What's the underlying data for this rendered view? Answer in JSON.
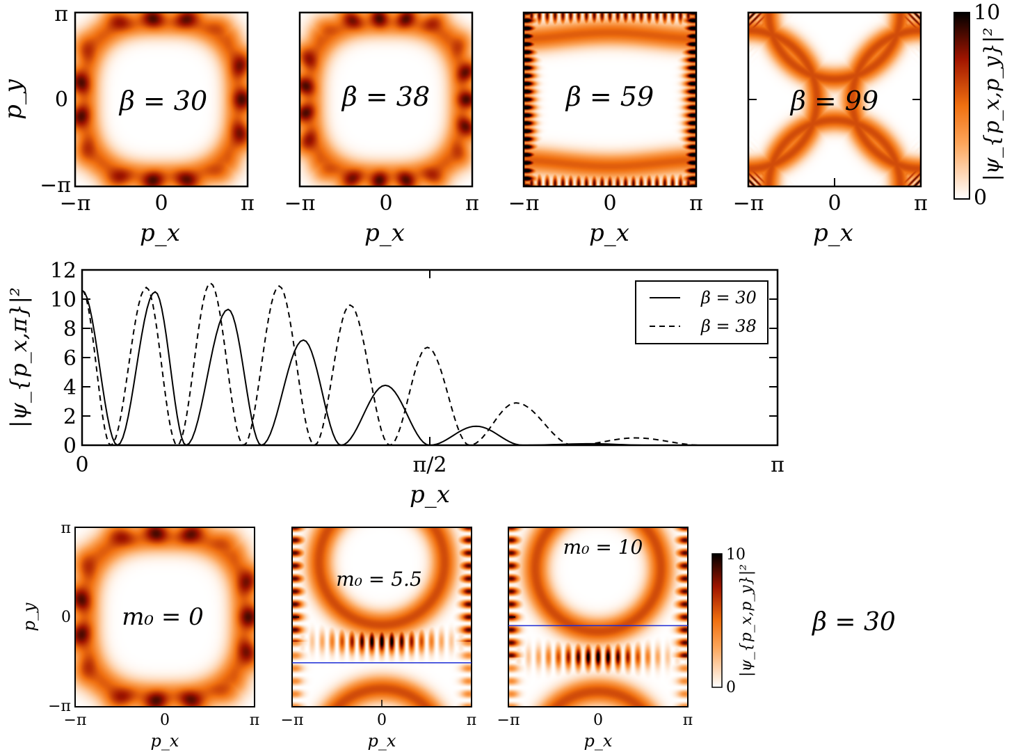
{
  "chart_data": [
    {
      "type": "heatmap",
      "panel": "top-1",
      "annotation": "β = 30",
      "xlabel": "p_x",
      "ylabel": "p_y",
      "xlim": [
        "-π",
        "π"
      ],
      "ylim": [
        "-π",
        "π"
      ],
      "x_ticks": [
        "−π",
        "0",
        "π"
      ],
      "y_ticks": [
        "π",
        "0",
        "−π"
      ],
      "pattern": "ring",
      "beta": 30,
      "fringe_count": 15
    },
    {
      "type": "heatmap",
      "panel": "top-2",
      "annotation": "β = 38",
      "xlabel": "p_x",
      "xlim": [
        "-π",
        "π"
      ],
      "x_ticks": [
        "−π",
        "0",
        "π"
      ],
      "pattern": "ring",
      "beta": 38,
      "fringe_count": 19
    },
    {
      "type": "heatmap",
      "panel": "top-3",
      "annotation": "β = 59",
      "xlabel": "p_x",
      "xlim": [
        "-π",
        "π"
      ],
      "x_ticks": [
        "−π",
        "0",
        "π"
      ],
      "pattern": "square",
      "beta": 59,
      "fringe_count": 22
    },
    {
      "type": "heatmap",
      "panel": "top-4",
      "annotation": "β = 99",
      "xlabel": "p_x",
      "xlim": [
        "-π",
        "π"
      ],
      "x_ticks": [
        "−π",
        "0",
        "π"
      ],
      "pattern": "star",
      "beta": 99,
      "fringe_count": 26
    },
    {
      "type": "colorbar",
      "panel": "top-colorbar",
      "label": "|ψ_{p_x,p_y}|²",
      "range": [
        0,
        10
      ],
      "tick_labels": [
        "10",
        "0"
      ]
    },
    {
      "type": "line",
      "panel": "middle",
      "xlabel": "p_x",
      "ylabel": "|ψ_{p_x,π}|²",
      "xlim": [
        0,
        3.14159
      ],
      "ylim": [
        0,
        12
      ],
      "x_ticks": [
        {
          "value": 0,
          "label": "0"
        },
        {
          "value": 1.5708,
          "label": "π/2"
        },
        {
          "value": 3.14159,
          "label": "π"
        }
      ],
      "y_ticks": [
        "0",
        "2",
        "4",
        "6",
        "8",
        "10",
        "12"
      ],
      "legend": "top-right",
      "series": [
        {
          "name": "β = 30",
          "style": "solid",
          "points": [
            [
              0,
              10.6
            ],
            [
              0.16,
              0
            ],
            [
              0.33,
              10.5
            ],
            [
              0.47,
              0
            ],
            [
              0.66,
              9.3
            ],
            [
              0.81,
              0
            ],
            [
              1.0,
              7.2
            ],
            [
              1.17,
              0
            ],
            [
              1.37,
              4.1
            ],
            [
              1.57,
              0
            ],
            [
              1.78,
              1.3
            ],
            [
              1.99,
              0
            ],
            [
              2.3,
              0.1
            ],
            [
              2.55,
              0
            ],
            [
              3.14,
              0
            ]
          ]
        },
        {
          "name": "β = 38",
          "style": "dashed",
          "points": [
            [
              0,
              10.6
            ],
            [
              0.13,
              0
            ],
            [
              0.29,
              10.8
            ],
            [
              0.43,
              0
            ],
            [
              0.58,
              11.1
            ],
            [
              0.73,
              0
            ],
            [
              0.89,
              10.9
            ],
            [
              1.05,
              0
            ],
            [
              1.21,
              9.6
            ],
            [
              1.39,
              0
            ],
            [
              1.56,
              6.7
            ],
            [
              1.75,
              0
            ],
            [
              1.96,
              2.9
            ],
            [
              2.22,
              0
            ],
            [
              2.5,
              0.5
            ],
            [
              2.8,
              0
            ],
            [
              3.14,
              0
            ]
          ]
        }
      ]
    },
    {
      "type": "heatmap",
      "panel": "bottom-1",
      "annotation": "m₀ = 0",
      "xlabel": "p_x",
      "ylabel": "p_y",
      "xlim": [
        "-π",
        "π"
      ],
      "ylim": [
        "-π",
        "π"
      ],
      "x_ticks": [
        "−π",
        "0",
        "π"
      ],
      "y_ticks": [
        "π",
        "0",
        "−π"
      ],
      "pattern": "ring",
      "m0": 0
    },
    {
      "type": "heatmap",
      "panel": "bottom-2",
      "annotation": "m₀ = 5.5",
      "xlabel": "p_x",
      "xlim": [
        "-π",
        "π"
      ],
      "x_ticks": [
        "−π",
        "0",
        "π"
      ],
      "pattern": "shifted",
      "m0": 5.5,
      "cut_line_py": -1.6
    },
    {
      "type": "heatmap",
      "panel": "bottom-3",
      "annotation": "m₀ = 10",
      "xlabel": "p_x",
      "xlim": [
        "-π",
        "π"
      ],
      "x_ticks": [
        "−π",
        "0",
        "π"
      ],
      "pattern": "shifted",
      "m0": 10,
      "cut_line_py": -0.3
    },
    {
      "type": "colorbar",
      "panel": "bottom-colorbar",
      "label": "|ψ_{p_x,p_y}|²",
      "range": [
        0,
        10
      ],
      "tick_labels": [
        "10",
        "0"
      ]
    }
  ],
  "figure_note": "β = 30"
}
